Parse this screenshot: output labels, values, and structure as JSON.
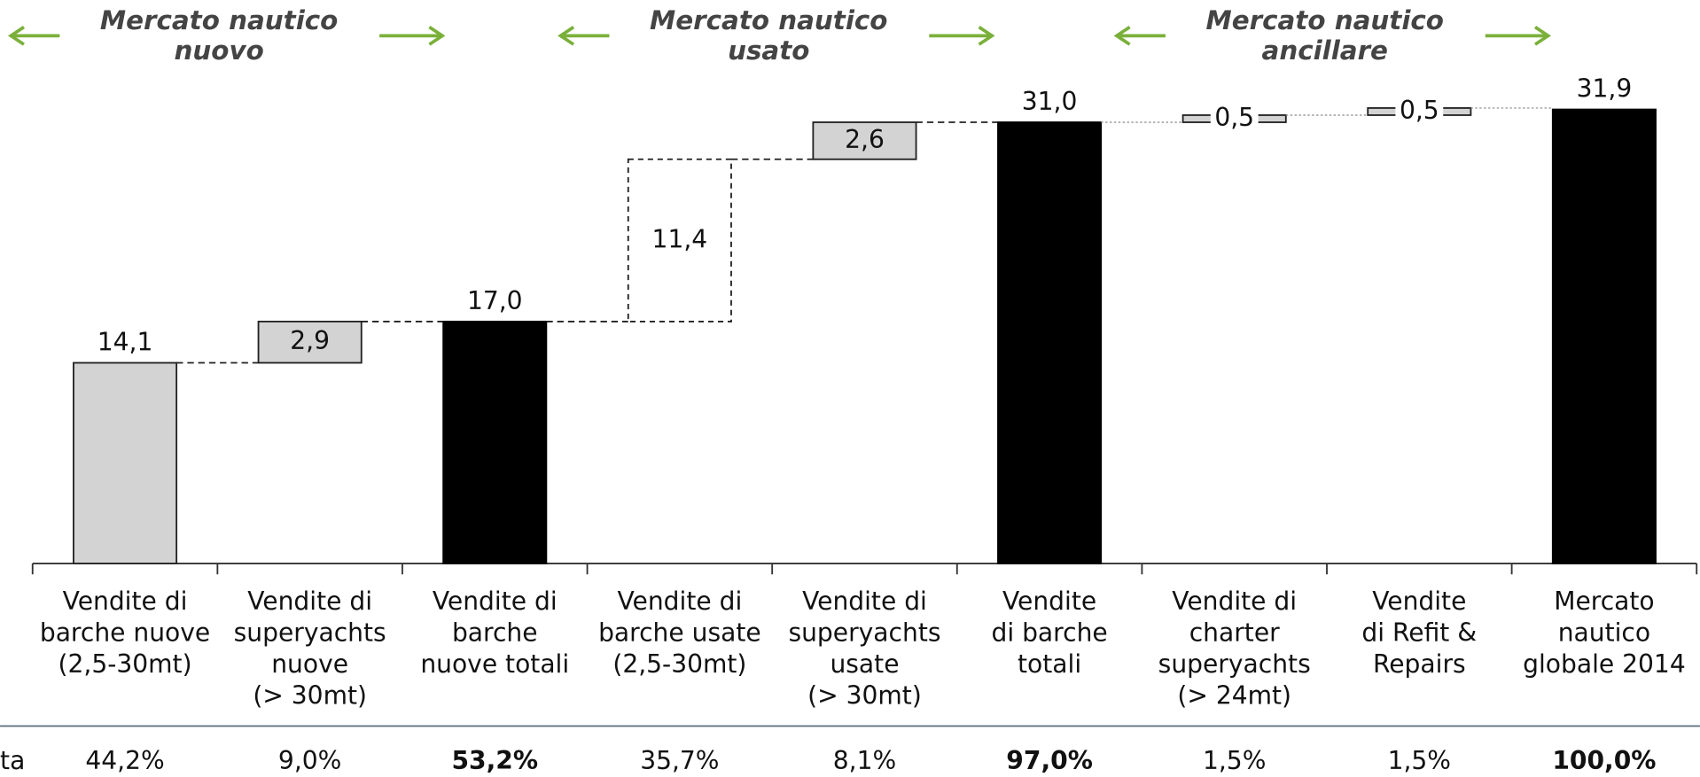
{
  "chart_data": {
    "type": "waterfall",
    "sections": [
      {
        "lines": [
          "Mercato nautico",
          "nuovo"
        ]
      },
      {
        "lines": [
          "Mercato nautico",
          "usato"
        ]
      },
      {
        "lines": [
          "Mercato nautico",
          "ancillare"
        ]
      }
    ],
    "categories": [
      [
        "Vendite di",
        "barche nuove",
        "(2,5-30mt)"
      ],
      [
        "Vendite di",
        "superyachts",
        "nuove",
        "(> 30mt)"
      ],
      [
        "Vendite di",
        "barche",
        "nuove totali"
      ],
      [
        "Vendite di",
        "barche usate",
        "(2,5-30mt)"
      ],
      [
        "Vendite di",
        "superyachts",
        "usate",
        "(> 30mt)"
      ],
      [
        "Vendite",
        "di barche",
        "totali"
      ],
      [
        "Vendite di",
        "charter",
        "superyachts",
        "(> 24mt)"
      ],
      [
        "Vendite",
        "di Refit &",
        "Repairs"
      ],
      [
        "Mercato",
        "nautico",
        "globale 2014"
      ]
    ],
    "kinds": [
      "total",
      "step",
      "total",
      "step",
      "step",
      "total",
      "step",
      "step",
      "total"
    ],
    "values": [
      14.1,
      2.9,
      17.0,
      11.4,
      2.6,
      31.0,
      0.5,
      0.5,
      31.9
    ],
    "value_labels": [
      "14,1",
      "2,9",
      "17,0",
      "11,4",
      "2,6",
      "31,0",
      "0,5",
      "0,5",
      "31,9"
    ],
    "colors": [
      "#d3d3d3",
      "#d3d3d3",
      "#000000",
      "#ffffff",
      "#d3d3d3",
      "#000000",
      "#d3d3d3",
      "#d3d3d3",
      "#000000"
    ],
    "row_label": "ta",
    "shares": [
      44.2,
      9.0,
      53.2,
      35.7,
      8.1,
      97.0,
      1.5,
      1.5,
      100.0
    ],
    "share_labels": [
      "44,2%",
      "9,0%",
      "53,2%",
      "35,7%",
      "8,1%",
      "97,0%",
      "1,5%",
      "1,5%",
      "100,0%"
    ]
  }
}
